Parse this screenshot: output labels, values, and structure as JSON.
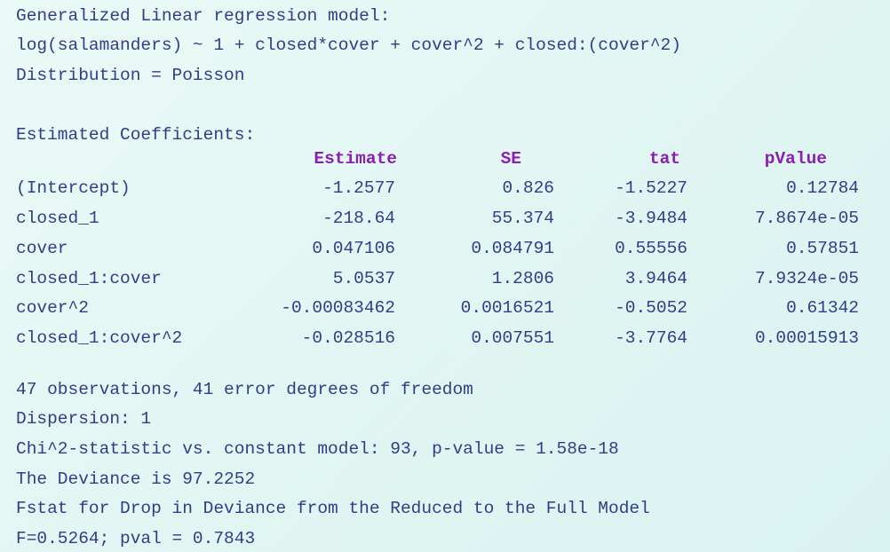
{
  "model": {
    "title": "Generalized Linear regression model:",
    "formula": "log(salamanders) ~ 1 + closed*cover + cover^2 + closed:(cover^2)",
    "distribution": "Distribution = Poisson"
  },
  "coefficients": {
    "heading": "Estimated Coefficients:",
    "columns": [
      "Estimate",
      "SE",
      "tat",
      "pValue"
    ],
    "rows": [
      {
        "name": "(Intercept)",
        "estimate": "-1.2577",
        "se": "0.826",
        "tstat": "-1.5227",
        "pvalue": "0.12784"
      },
      {
        "name": "closed_1",
        "estimate": "-218.64",
        "se": "55.374",
        "tstat": "-3.9484",
        "pvalue": "7.8674e-05"
      },
      {
        "name": "cover",
        "estimate": "0.047106",
        "se": "0.084791",
        "tstat": "0.55556",
        "pvalue": "0.57851"
      },
      {
        "name": "closed_1:cover",
        "estimate": "5.0537",
        "se": "1.2806",
        "tstat": "3.9464",
        "pvalue": "7.9324e-05"
      },
      {
        "name": "cover^2",
        "estimate": "-0.00083462",
        "se": "0.0016521",
        "tstat": "-0.5052",
        "pvalue": "0.61342"
      },
      {
        "name": "closed_1:cover^2",
        "estimate": "-0.028516",
        "se": "0.007551",
        "tstat": "-3.7764",
        "pvalue": "0.00015913"
      }
    ]
  },
  "summary": {
    "observations": "47 observations, 41 error degrees of freedom",
    "dispersion": "Dispersion: 1",
    "chi2": "Chi^2-statistic vs. constant model: 93, p-value = 1.58e-18",
    "deviance": "The Deviance is 97.2252",
    "fstat_heading": "Fstat for Drop in Deviance from the Reduced to the Full Model",
    "fstat_values": "F=0.5264; pval = 0.7843"
  },
  "colors": {
    "text": "#2f3e86",
    "header": "#8a1fb0",
    "background": "#e2f6f3"
  }
}
